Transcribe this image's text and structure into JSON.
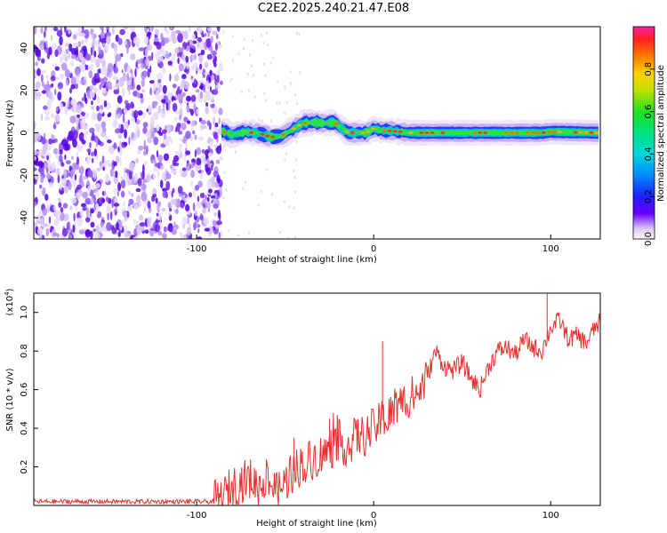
{
  "title": "C2E2.2025.240.21.47.E08",
  "chart_data": [
    {
      "type": "heatmap",
      "name": "spectrogram",
      "xlabel": "Height of straight line (km)",
      "ylabel": "Frequency (Hz)",
      "xlim": [
        -192,
        128
      ],
      "ylim": [
        -50,
        50
      ],
      "xticks": [
        -100,
        0,
        100
      ],
      "yticks": [
        -40,
        -20,
        0,
        20,
        40
      ],
      "noise_region_x": [
        -192,
        -86
      ],
      "ridge": {
        "x": [
          -86,
          -80,
          -72,
          -64,
          -58,
          -52,
          -46,
          -40,
          -34,
          -28,
          -22,
          -18,
          -14,
          -10,
          -4,
          0,
          5,
          10,
          20,
          40,
          60,
          80,
          95,
          100,
          128
        ],
        "y": [
          1.0,
          -1.0,
          0.5,
          -0.5,
          -2.0,
          -1.5,
          1.5,
          4.5,
          5.0,
          4.5,
          5.0,
          2.0,
          0.0,
          0.0,
          0.0,
          2.0,
          1.0,
          1.0,
          0.0,
          0.0,
          0.0,
          0.0,
          0.0,
          0.5,
          0.0
        ]
      },
      "colorbar": {
        "label": "Normalized spectral amplitude",
        "range": [
          0.0,
          1.0
        ],
        "ticks": [
          "0.0",
          "0.2",
          "0.4",
          "0.6",
          "0.8"
        ]
      }
    },
    {
      "type": "line",
      "name": "snr",
      "xlabel": "Height of straight line (km)",
      "ylabel": "SNR (10 * v/v)",
      "yscale_label": "(x10",
      "yscale_exp": "4",
      "yscale_close": ")",
      "xlim": [
        -192,
        128
      ],
      "ylim": [
        0.0,
        1.1
      ],
      "xticks": [
        -100,
        0,
        100
      ],
      "yticks": [
        0.2,
        0.4,
        0.6,
        0.8,
        1.0
      ],
      "ytick_labels": [
        "0.2",
        "0.4",
        "0.6",
        "0.8",
        "1.0"
      ],
      "color": "#e8312f",
      "series": {
        "x": [
          -192,
          -90,
          -85,
          -80,
          -75,
          -70,
          -65,
          -60,
          -55,
          -50,
          -45,
          -40,
          -35,
          -30,
          -25,
          -20,
          -15,
          -10,
          -5,
          0,
          5,
          10,
          15,
          20,
          25,
          30,
          35,
          40,
          45,
          50,
          55,
          60,
          65,
          70,
          75,
          80,
          85,
          90,
          95,
          100,
          105,
          110,
          115,
          120,
          125,
          128
        ],
        "y": [
          0.02,
          0.02,
          0.04,
          0.1,
          0.12,
          0.14,
          0.1,
          0.15,
          0.06,
          0.12,
          0.18,
          0.22,
          0.24,
          0.26,
          0.28,
          0.34,
          0.3,
          0.36,
          0.36,
          0.4,
          0.44,
          0.48,
          0.52,
          0.56,
          0.58,
          0.66,
          0.8,
          0.72,
          0.7,
          0.74,
          0.66,
          0.6,
          0.72,
          0.8,
          0.82,
          0.78,
          0.86,
          0.82,
          0.8,
          0.92,
          0.96,
          0.86,
          0.88,
          0.84,
          0.92,
          0.95
        ]
      },
      "noise_amplitude": 0.05,
      "spikes": [
        {
          "x": 98,
          "y": 1.1
        },
        {
          "x": 5,
          "y": 0.85
        },
        {
          "x": -45,
          "y": 0.35
        },
        {
          "x": -25,
          "y": 0.45
        }
      ]
    }
  ]
}
